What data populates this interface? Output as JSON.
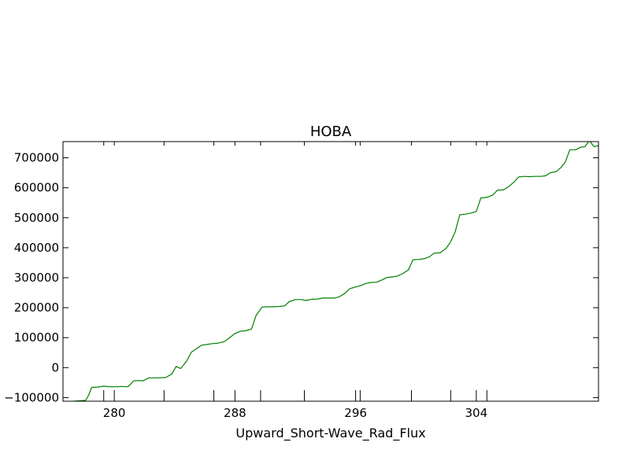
{
  "chart_data": {
    "type": "line",
    "title": "HOBA",
    "xlabel": "Upward_Short-Wave_Rad_Flux",
    "ylabel": "",
    "xlim": [
      276.6,
      312.1
    ],
    "ylim": [
      -112000,
      754000
    ],
    "x_ticks": [
      {
        "value": 280,
        "label": "280"
      },
      {
        "value": 288,
        "label": "288"
      },
      {
        "value": 296,
        "label": "296"
      },
      {
        "value": 304,
        "label": "304"
      }
    ],
    "x_minor_ticks": [
      279.3,
      283.3,
      286.6,
      289.7,
      292.6,
      296.3,
      299.7,
      302.3,
      304.7
    ],
    "y_ticks": [
      {
        "value": -100000,
        "label": "−100000"
      },
      {
        "value": 0,
        "label": "0"
      },
      {
        "value": 100000,
        "label": "100000"
      },
      {
        "value": 200000,
        "label": "200000"
      },
      {
        "value": 300000,
        "label": "300000"
      },
      {
        "value": 400000,
        "label": "400000"
      },
      {
        "value": 500000,
        "label": "500000"
      },
      {
        "value": 600000,
        "label": "600000"
      },
      {
        "value": 700000,
        "label": "700000"
      }
    ],
    "grid": false,
    "series": [
      {
        "color": "#008000",
        "points": [
          [
            277.3,
            -112000
          ],
          [
            277.9,
            -110000
          ],
          [
            278.1,
            -109000
          ],
          [
            278.3,
            -92000
          ],
          [
            278.5,
            -66000
          ],
          [
            278.9,
            -65000
          ],
          [
            279.3,
            -62000
          ],
          [
            279.7,
            -64000
          ],
          [
            280.1,
            -64000
          ],
          [
            280.5,
            -63000
          ],
          [
            280.9,
            -64000
          ],
          [
            281.3,
            -44000
          ],
          [
            281.6,
            -43000
          ],
          [
            281.9,
            -44000
          ],
          [
            282.3,
            -34000
          ],
          [
            282.6,
            -34000
          ],
          [
            283.0,
            -34000
          ],
          [
            283.4,
            -33000
          ],
          [
            283.8,
            -22000
          ],
          [
            284.1,
            4000
          ],
          [
            284.4,
            -3000
          ],
          [
            284.8,
            22000
          ],
          [
            285.1,
            51000
          ],
          [
            285.4,
            62000
          ],
          [
            285.8,
            75000
          ],
          [
            286.1,
            77000
          ],
          [
            286.5,
            80000
          ],
          [
            286.9,
            82000
          ],
          [
            287.3,
            87000
          ],
          [
            287.6,
            98000
          ],
          [
            288.0,
            114000
          ],
          [
            288.4,
            122000
          ],
          [
            288.7,
            123000
          ],
          [
            289.1,
            129000
          ],
          [
            289.4,
            174000
          ],
          [
            289.8,
            202000
          ],
          [
            290.1,
            203000
          ],
          [
            290.5,
            203000
          ],
          [
            290.9,
            204000
          ],
          [
            291.3,
            206000
          ],
          [
            291.6,
            220000
          ],
          [
            292.0,
            227000
          ],
          [
            292.4,
            227000
          ],
          [
            292.7,
            224000
          ],
          [
            293.1,
            228000
          ],
          [
            293.5,
            229000
          ],
          [
            293.8,
            232000
          ],
          [
            294.2,
            232000
          ],
          [
            294.6,
            232000
          ],
          [
            294.9,
            236000
          ],
          [
            295.3,
            248000
          ],
          [
            295.6,
            263000
          ],
          [
            296.0,
            269000
          ],
          [
            296.3,
            273000
          ],
          [
            296.7,
            281000
          ],
          [
            297.0,
            284000
          ],
          [
            297.4,
            285000
          ],
          [
            297.8,
            294000
          ],
          [
            298.1,
            301000
          ],
          [
            298.5,
            303000
          ],
          [
            298.8,
            306000
          ],
          [
            299.1,
            313000
          ],
          [
            299.5,
            326000
          ],
          [
            299.8,
            360000
          ],
          [
            300.2,
            361000
          ],
          [
            300.6,
            364000
          ],
          [
            300.9,
            370000
          ],
          [
            301.2,
            382000
          ],
          [
            301.6,
            383000
          ],
          [
            302.0,
            398000
          ],
          [
            302.3,
            420000
          ],
          [
            302.6,
            453000
          ],
          [
            302.9,
            510000
          ],
          [
            303.3,
            512000
          ],
          [
            303.7,
            516000
          ],
          [
            304.0,
            521000
          ],
          [
            304.3,
            566000
          ],
          [
            304.7,
            568000
          ],
          [
            305.1,
            576000
          ],
          [
            305.4,
            592000
          ],
          [
            305.8,
            593000
          ],
          [
            306.1,
            602000
          ],
          [
            306.5,
            619000
          ],
          [
            306.8,
            636000
          ],
          [
            307.2,
            638000
          ],
          [
            307.5,
            637000
          ],
          [
            307.9,
            638000
          ],
          [
            308.3,
            638000
          ],
          [
            308.6,
            640000
          ],
          [
            308.9,
            650000
          ],
          [
            309.3,
            654000
          ],
          [
            309.6,
            667000
          ],
          [
            309.9,
            686000
          ],
          [
            310.2,
            727000
          ],
          [
            310.6,
            727000
          ],
          [
            310.9,
            735000
          ],
          [
            311.2,
            737000
          ],
          [
            311.5,
            758000
          ],
          [
            311.8,
            737000
          ],
          [
            312.1,
            741000
          ],
          [
            312.5,
            745000
          ]
        ]
      }
    ]
  }
}
